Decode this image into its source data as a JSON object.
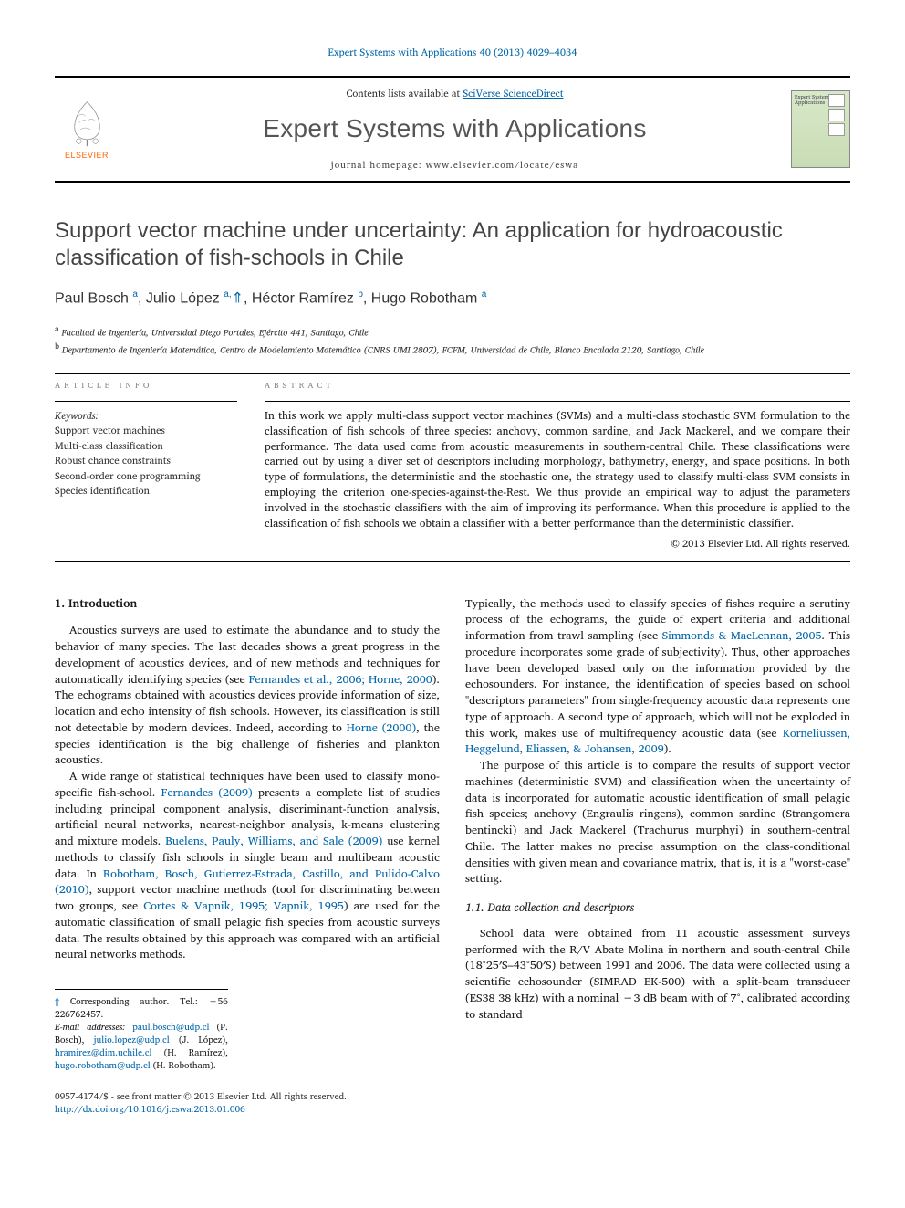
{
  "journal_ref": "Expert Systems with Applications 40 (2013) 4029–4034",
  "header": {
    "contents_prefix": "Contents lists available at ",
    "contents_link": "SciVerse ScienceDirect",
    "journal_title": "Expert Systems with Applications",
    "homepage_prefix": "journal homepage: ",
    "homepage_url": "www.elsevier.com/locate/eswa",
    "elsevier_brand": "ELSEVIER",
    "cover_title": "Expert Systems with Applications"
  },
  "title": "Support vector machine under uncertainty: An application for hydroacoustic classification of fish-schools in Chile",
  "authors_html": "Paul Bosch <sup>a</sup>, Julio López <sup>a,</sup><span class='star'>⇑</span>, Héctor Ramírez <sup>b</sup>, Hugo Robotham <sup>a</sup>",
  "affiliations": [
    {
      "marker": "a",
      "text": "Facultad de Ingeniería, Universidad Diego Portales, Ejército 441, Santiago, Chile"
    },
    {
      "marker": "b",
      "text": "Departamento de Ingeniería Matemática, Centro de Modelamiento Matemático (CNRS UMI 2807), FCFM, Universidad de Chile, Blanco Encalada 2120, Santiago, Chile"
    }
  ],
  "info_label": "ARTICLE INFO",
  "abstract_label": "ABSTRACT",
  "keywords_label": "Keywords:",
  "keywords": [
    "Support vector machines",
    "Multi-class classification",
    "Robust chance constraints",
    "Second-order cone programming",
    "Species identification"
  ],
  "abstract": "In this work we apply multi-class support vector machines (SVMs) and a multi-class stochastic SVM formulation to the classification of fish schools of three species: anchovy, common sardine, and Jack Mackerel, and we compare their performance. The data used come from acoustic measurements in southern-central Chile. These classifications were carried out by using a diver set of descriptors including morphology, bathymetry, energy, and space positions. In both type of formulations, the deterministic and the stochastic one, the strategy used to classify multi-class SVM consists in employing the criterion one-species-against-the-Rest. We thus provide an empirical way to adjust the parameters involved in the stochastic classifiers with the aim of improving its performance. When this procedure is applied to the classification of fish schools we obtain a classifier with a better performance than the deterministic classifier.",
  "copyright": "© 2013 Elsevier Ltd. All rights reserved.",
  "intro_heading": "1. Introduction",
  "data_heading": "1.1. Data collection and descriptors",
  "body": {
    "p1": "Acoustics surveys are used to estimate the abundance and to study the behavior of many species. The last decades shows a great progress in the development of acoustics devices, and of new methods and techniques for automatically identifying species (see ",
    "p1_link1": "Fernandes et al., 2006; Horne, 2000",
    "p1_b": "). The echograms obtained with acoustics devices provide information of size, location and echo intensity of fish schools. However, its classification is still not detectable by modern devices. Indeed, according to ",
    "p1_link2": "Horne (2000)",
    "p1_c": ", the species identification is the big challenge of fisheries and plankton acoustics.",
    "p2": "A wide range of statistical techniques have been used to classify mono-specific fish-school. ",
    "p2_link1": "Fernandes (2009)",
    "p2_b": " presents a complete list of studies including principal component analysis, discriminant-function analysis, artificial neural networks, nearest-neighbor analysis, k-means clustering and mixture models. ",
    "p2_link2": "Buelens, Pauly, Williams, and Sale (2009)",
    "p2_c": " use kernel methods to classify fish schools in single beam and multibeam acoustic data. In ",
    "p2_link3": "Robotham, Bosch, Gutierrez-Estrada, Castillo, and Pulido-Calvo (2010)",
    "p2_d": ", support vector machine methods (tool for discriminating between two groups, see ",
    "p2_link4": "Cortes & Vapnik, 1995; Vapnik, 1995",
    "p2_e": ") are used for the automatic classification of small pelagic fish species from acoustic surveys data. The results obtained by this approach was compared with an artificial neural networks methods.",
    "p3": "Typically, the methods used to classify species of fishes require a scrutiny process of the echograms, the guide of expert criteria and additional information from trawl sampling (see ",
    "p3_link1": "Simmonds & MacLennan, 2005",
    "p3_b": ". This procedure incorporates some grade of subjectivity). Thus, other approaches have been developed based only on the information provided by the echosounders. For instance, the identification of species based on school \"descriptors parameters\" from single-frequency acoustic data represents one type of approach. A second type of approach, which will not be exploded in this work, makes use of multifrequency acoustic data (see ",
    "p3_link2": "Korneliussen, Heggelund, Eliassen, & Johansen, 2009",
    "p3_c": ").",
    "p4": "The purpose of this article is to compare the results of support vector machines (deterministic SVM) and classification when the uncertainty of data is incorporated for automatic acoustic identification of small pelagic fish species; anchovy (Engraulis ringens), common sardine (Strangomera bentincki) and Jack Mackerel (Trachurus murphyi) in southern-central Chile. The latter makes no precise assumption on the class-conditional densities with given mean and covariance matrix, that is, it is a \"worst-case\" setting.",
    "p5": "School data were obtained from 11 acoustic assessment surveys performed with the R/V Abate Molina in northern and south-central Chile (18°25′S–43°50′S) between 1991 and 2006. The data were collected using a scientific echosounder (SIMRAD EK-500) with a split-beam transducer (ES38 38 kHz) with a nominal −3 dB beam with of 7°, calibrated according to standard"
  },
  "footnotes": {
    "corresponding": "Corresponding author. Tel.: +56 226762457.",
    "emails_label": "E-mail addresses:",
    "emails": [
      {
        "email": "paul.bosch@udp.cl",
        "name": "(P. Bosch)"
      },
      {
        "email": "julio.lopez@udp.cl",
        "name": "(J. López)"
      },
      {
        "email": "hramirez@dim.uchile.cl",
        "name": "(H. Ramírez)"
      },
      {
        "email": "hugo.robotham@udp.cl",
        "name": "(H. Robotham)"
      }
    ]
  },
  "footer": {
    "issn": "0957-4174/$ - see front matter © 2013 Elsevier Ltd. All rights reserved.",
    "doi": "http://dx.doi.org/10.1016/j.eswa.2013.01.006"
  },
  "colors": {
    "link": "#0066aa",
    "elsevier_orange": "#ff6600",
    "heading_gray": "#555555",
    "rule": "#000000"
  }
}
